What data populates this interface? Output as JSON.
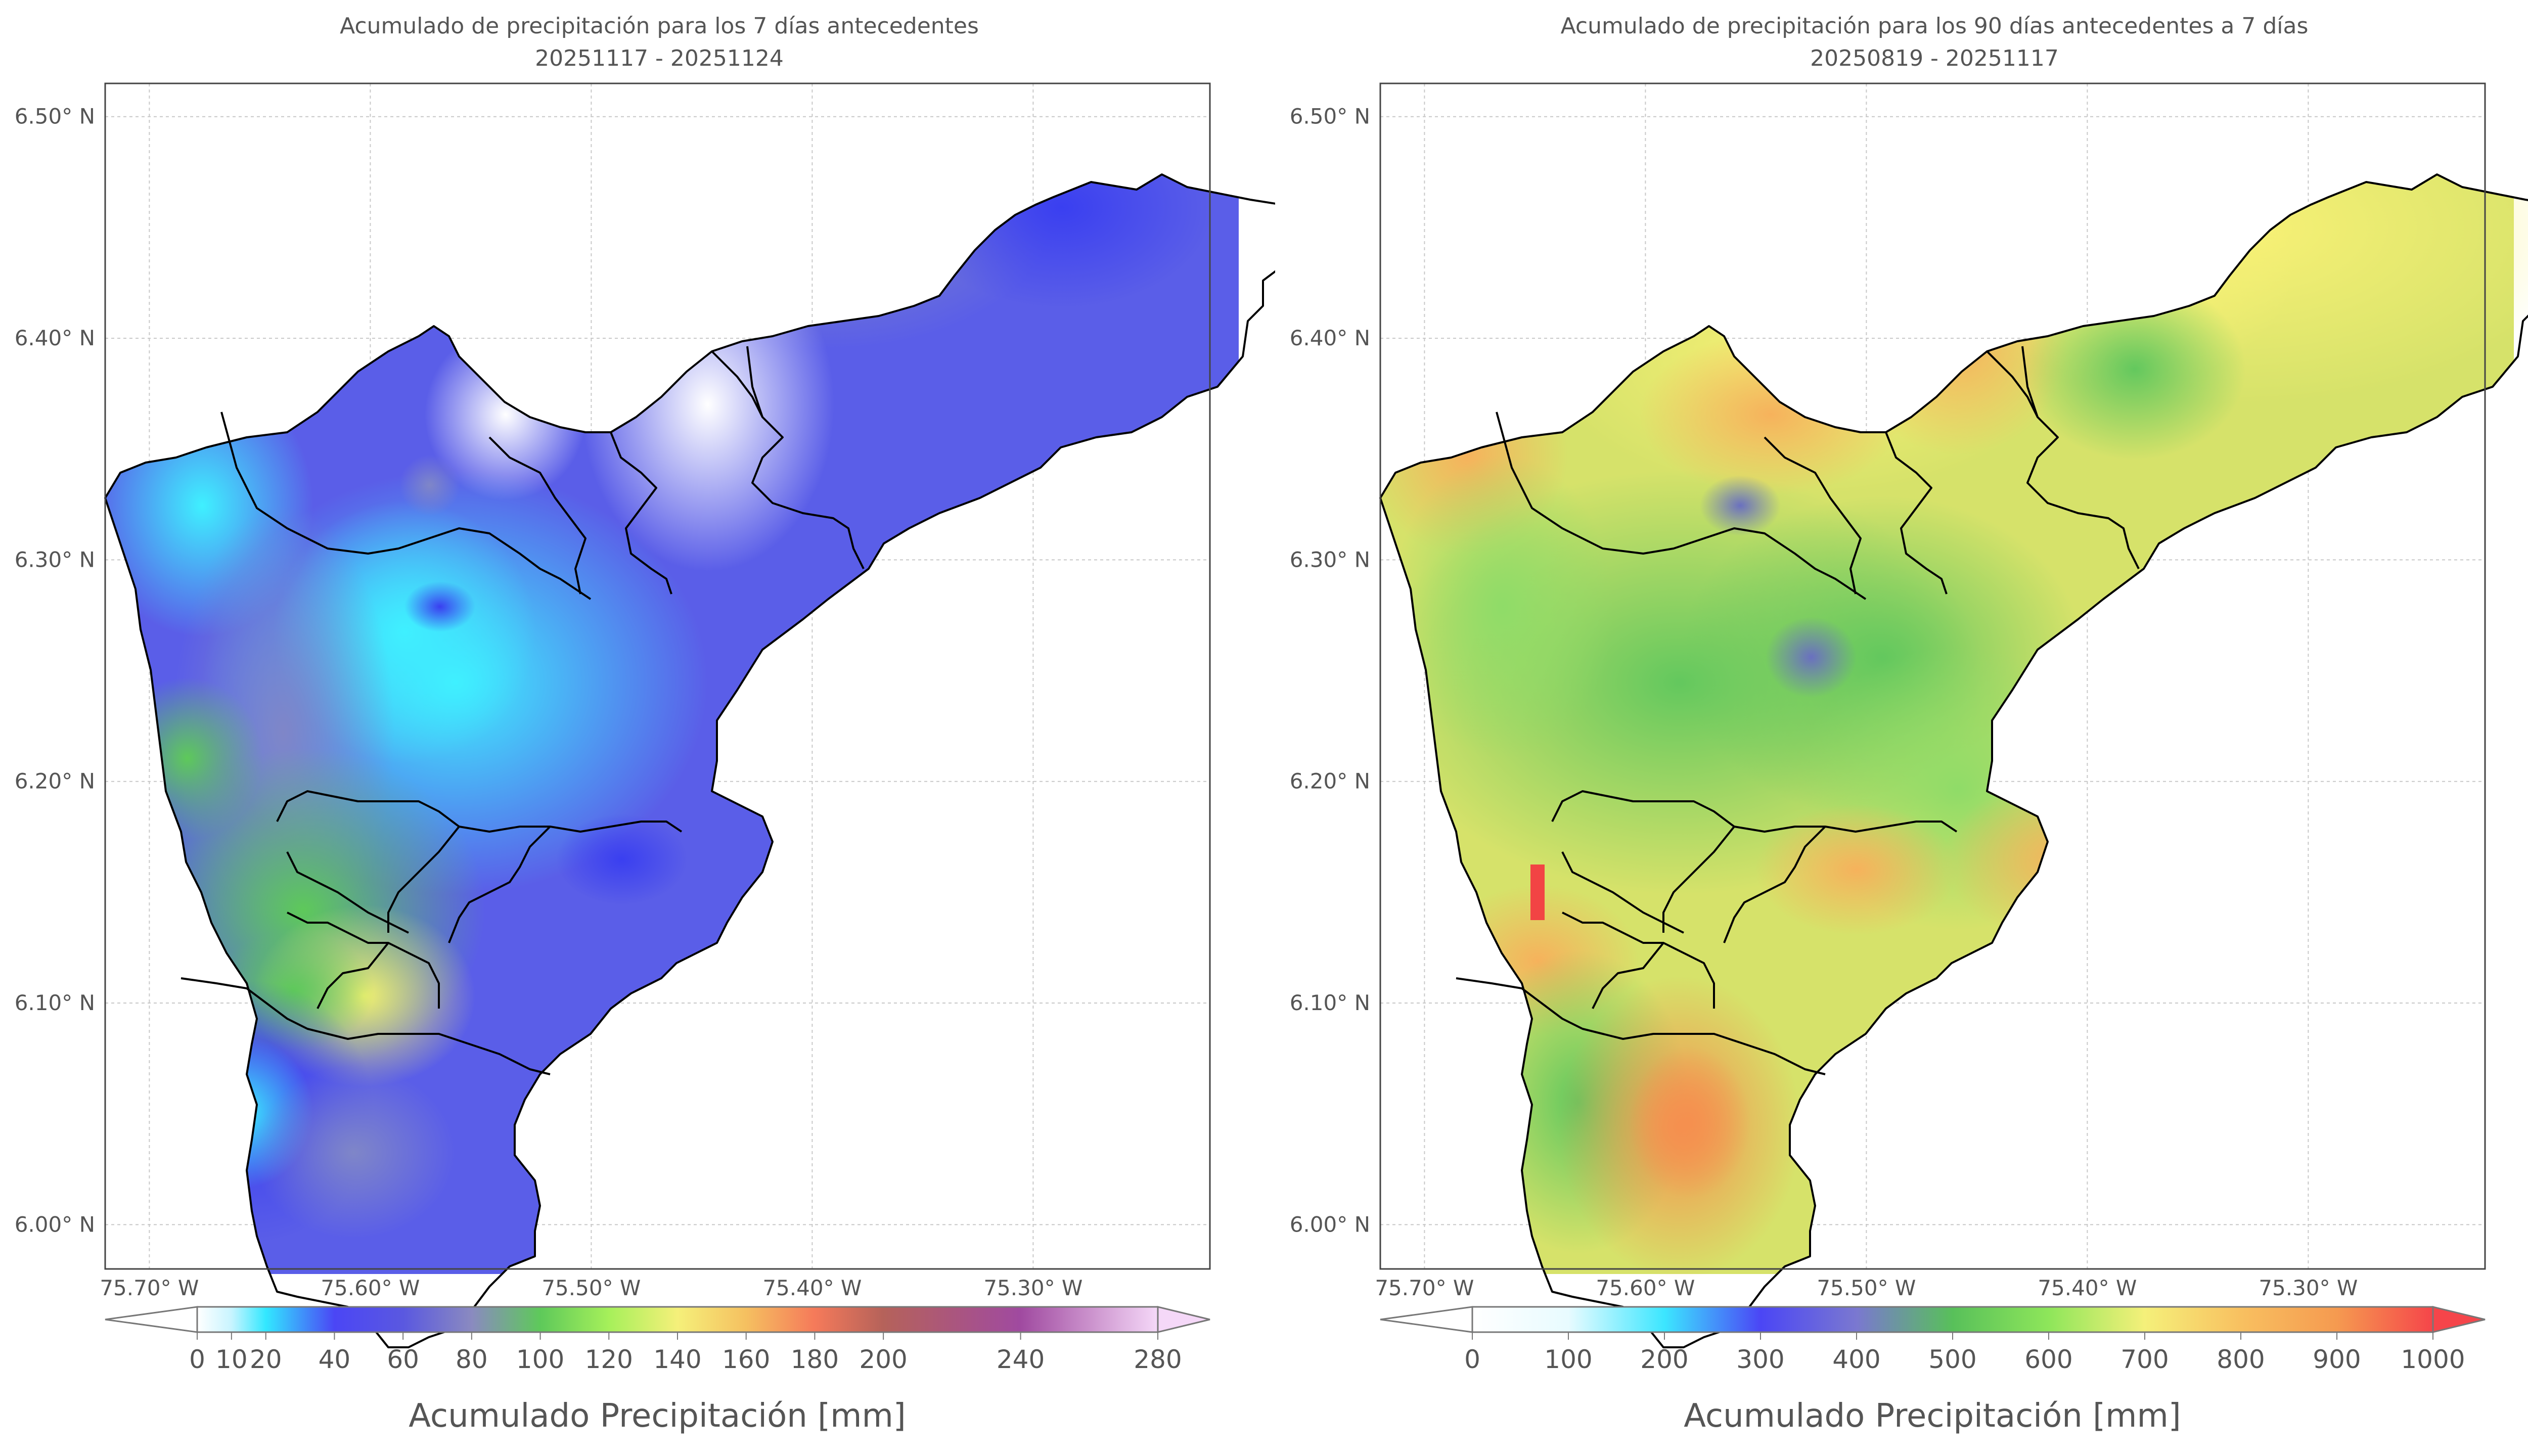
{
  "panels": [
    {
      "title_line1": "Acumulado de precipitación para los 7 días antecedentes",
      "title_line2": "20251117 - 20251124",
      "colorbar": {
        "label": "Acumulado Precipitación [mm]",
        "ticks": [
          "0",
          "10",
          "20",
          "40",
          "60",
          "80",
          "100",
          "120",
          "140",
          "160",
          "180",
          "200",
          "240",
          "280"
        ],
        "tick_values": [
          0,
          10,
          20,
          40,
          60,
          80,
          100,
          120,
          140,
          160,
          180,
          200,
          240,
          280
        ],
        "colors": [
          "#ffffff",
          "#c8f4ff",
          "#32e8ff",
          "#4b46f5",
          "#5a58e0",
          "#8a8ac0",
          "#5ec95a",
          "#a6f05a",
          "#f5f07a",
          "#f5c060",
          "#f57a5a",
          "#b5625a",
          "#a04aa0",
          "#f5d8f8"
        ],
        "extend": "both"
      }
    },
    {
      "title_line1": "Acumulado de precipitación para los 90 días antecedentes a 7 días",
      "title_line2": "20250819 - 20251117",
      "colorbar": {
        "label": "Acumulado Precipitación [mm]",
        "ticks": [
          "0",
          "100",
          "200",
          "300",
          "400",
          "500",
          "600",
          "700",
          "800",
          "900",
          "1000"
        ],
        "tick_values": [
          0,
          100,
          200,
          300,
          400,
          500,
          600,
          700,
          800,
          900,
          1000
        ],
        "colors": [
          "#ffffff",
          "#e8fbff",
          "#3ce6ff",
          "#4b46f5",
          "#7a78d0",
          "#58c05a",
          "#8ee65a",
          "#f5f07a",
          "#f8c060",
          "#f59a50",
          "#f5454a"
        ],
        "extend": "both"
      }
    }
  ],
  "map": {
    "lat_labels": [
      "6.50° N",
      "6.40° N",
      "6.30° N",
      "6.20° N",
      "6.10° N",
      "6.00° N"
    ],
    "lat_values": [
      6.5,
      6.4,
      6.3,
      6.2,
      6.1,
      6.0
    ],
    "lon_labels": [
      "75.70° W",
      "75.60° W",
      "75.50° W",
      "75.40° W",
      "75.30° W"
    ],
    "lon_values": [
      -75.7,
      -75.6,
      -75.5,
      -75.4,
      -75.3
    ],
    "lon_range": [
      -75.72,
      -75.22
    ],
    "lat_range": [
      5.98,
      6.515
    ],
    "gridlines": true
  }
}
